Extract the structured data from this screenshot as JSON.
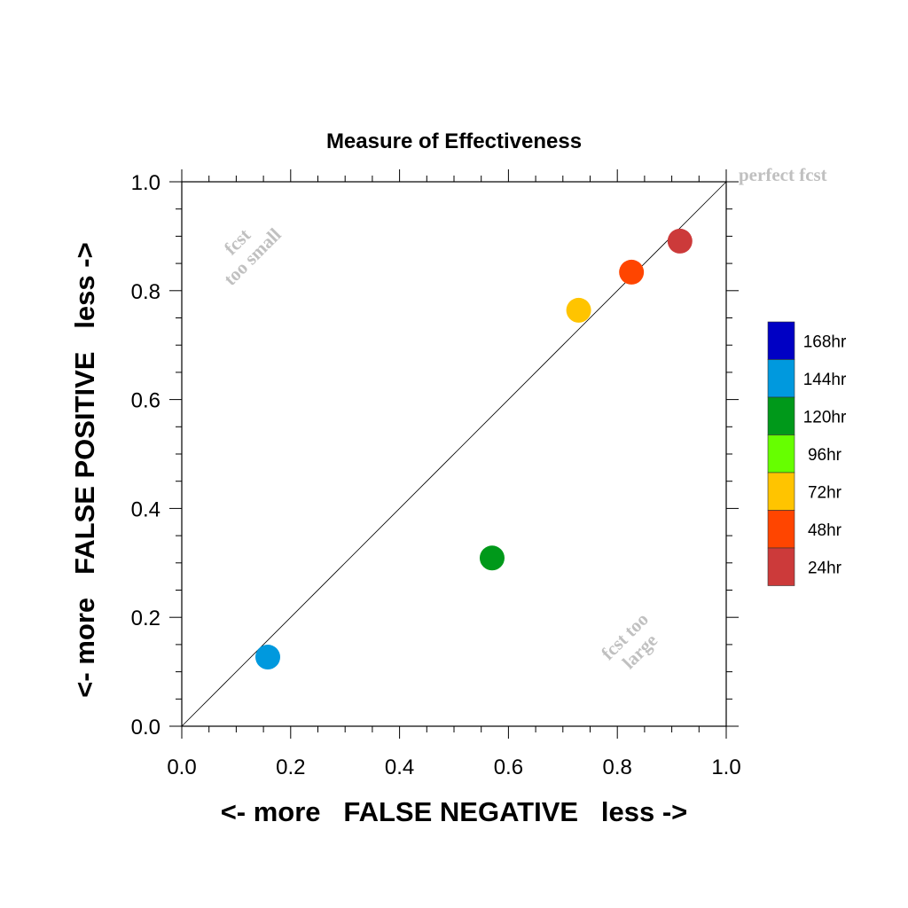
{
  "chart_data": {
    "type": "scatter",
    "title": "Measure of Effectiveness",
    "xlabel": "<- more   FALSE NEGATIVE   less ->",
    "ylabel": "<- more   FALSE POSITIVE   less ->",
    "xlim": [
      0,
      1
    ],
    "ylim": [
      0,
      1
    ],
    "x_ticks": [
      "0.0",
      "0.2",
      "0.4",
      "0.6",
      "0.8",
      "1.0"
    ],
    "y_ticks": [
      "0.0",
      "0.2",
      "0.4",
      "0.6",
      "0.8",
      "1.0"
    ],
    "grid": false,
    "reference_line": {
      "from": [
        0,
        0
      ],
      "to": [
        1,
        1
      ],
      "label": "perfect fcst"
    },
    "annotations": {
      "upper_left": [
        "fcst",
        "too small"
      ],
      "lower_right": [
        "fcst too",
        "large"
      ]
    },
    "legend": {
      "placement": "right",
      "entries": [
        {
          "label": "168hr",
          "color": "#0000c4"
        },
        {
          "label": "144hr",
          "color": "#0099de"
        },
        {
          "label": "120hr",
          "color": "#00991a"
        },
        {
          "label": "96hr",
          "color": "#66ff00"
        },
        {
          "label": "72hr",
          "color": "#ffc400"
        },
        {
          "label": "48hr",
          "color": "#ff4500"
        },
        {
          "label": "24hr",
          "color": "#cc3a3a"
        }
      ]
    },
    "points": [
      {
        "series": "144hr",
        "x": 0.158,
        "y": 0.127,
        "color": "#0099de"
      },
      {
        "series": "120hr",
        "x": 0.57,
        "y": 0.309,
        "color": "#00991a"
      },
      {
        "series": "72hr",
        "x": 0.729,
        "y": 0.764,
        "color": "#ffc400"
      },
      {
        "series": "48hr",
        "x": 0.826,
        "y": 0.834,
        "color": "#ff4500"
      },
      {
        "series": "24hr",
        "x": 0.915,
        "y": 0.891,
        "color": "#cc3a3a"
      }
    ]
  }
}
